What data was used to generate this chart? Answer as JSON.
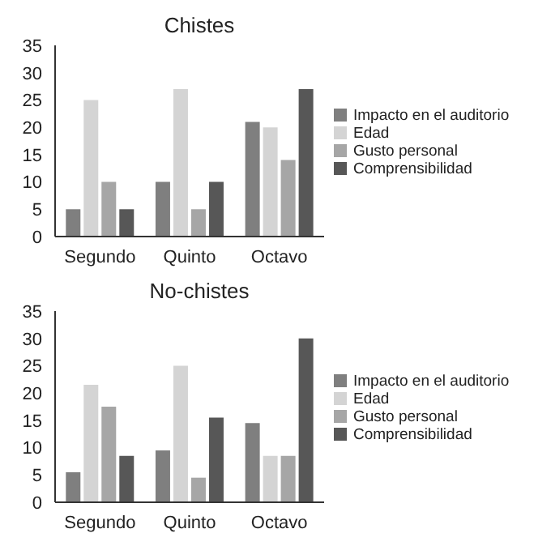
{
  "chart_data": [
    {
      "type": "bar",
      "title": "Chistes",
      "categories": [
        "Segundo",
        "Quinto",
        "Octavo"
      ],
      "series": [
        {
          "name": "Impacto en el auditorio",
          "color": "#7f7f7f",
          "values": [
            5,
            10,
            21
          ]
        },
        {
          "name": "Edad",
          "color": "#d4d4d4",
          "values": [
            25,
            27,
            20
          ]
        },
        {
          "name": "Gusto personal",
          "color": "#a6a6a6",
          "values": [
            10,
            5,
            14
          ]
        },
        {
          "name": "Comprensibilidad",
          "color": "#575757",
          "values": [
            5,
            10,
            27
          ]
        }
      ],
      "ylim": [
        0,
        35
      ],
      "yticks": [
        0,
        5,
        10,
        15,
        20,
        25,
        30,
        35
      ],
      "grid": false,
      "legend": "right"
    },
    {
      "type": "bar",
      "title": "No-chistes",
      "categories": [
        "Segundo",
        "Quinto",
        "Octavo"
      ],
      "series": [
        {
          "name": "Impacto en el auditorio",
          "color": "#7f7f7f",
          "values": [
            5.5,
            9.5,
            14.5
          ]
        },
        {
          "name": "Edad",
          "color": "#d4d4d4",
          "values": [
            21.5,
            25,
            8.5
          ]
        },
        {
          "name": "Gusto personal",
          "color": "#a6a6a6",
          "values": [
            17.5,
            4.5,
            8.5
          ]
        },
        {
          "name": "Comprensibilidad",
          "color": "#575757",
          "values": [
            8.5,
            15.5,
            30
          ]
        }
      ],
      "ylim": [
        0,
        35
      ],
      "yticks": [
        0,
        5,
        10,
        15,
        20,
        25,
        30,
        35
      ],
      "grid": false,
      "legend": "right"
    }
  ]
}
